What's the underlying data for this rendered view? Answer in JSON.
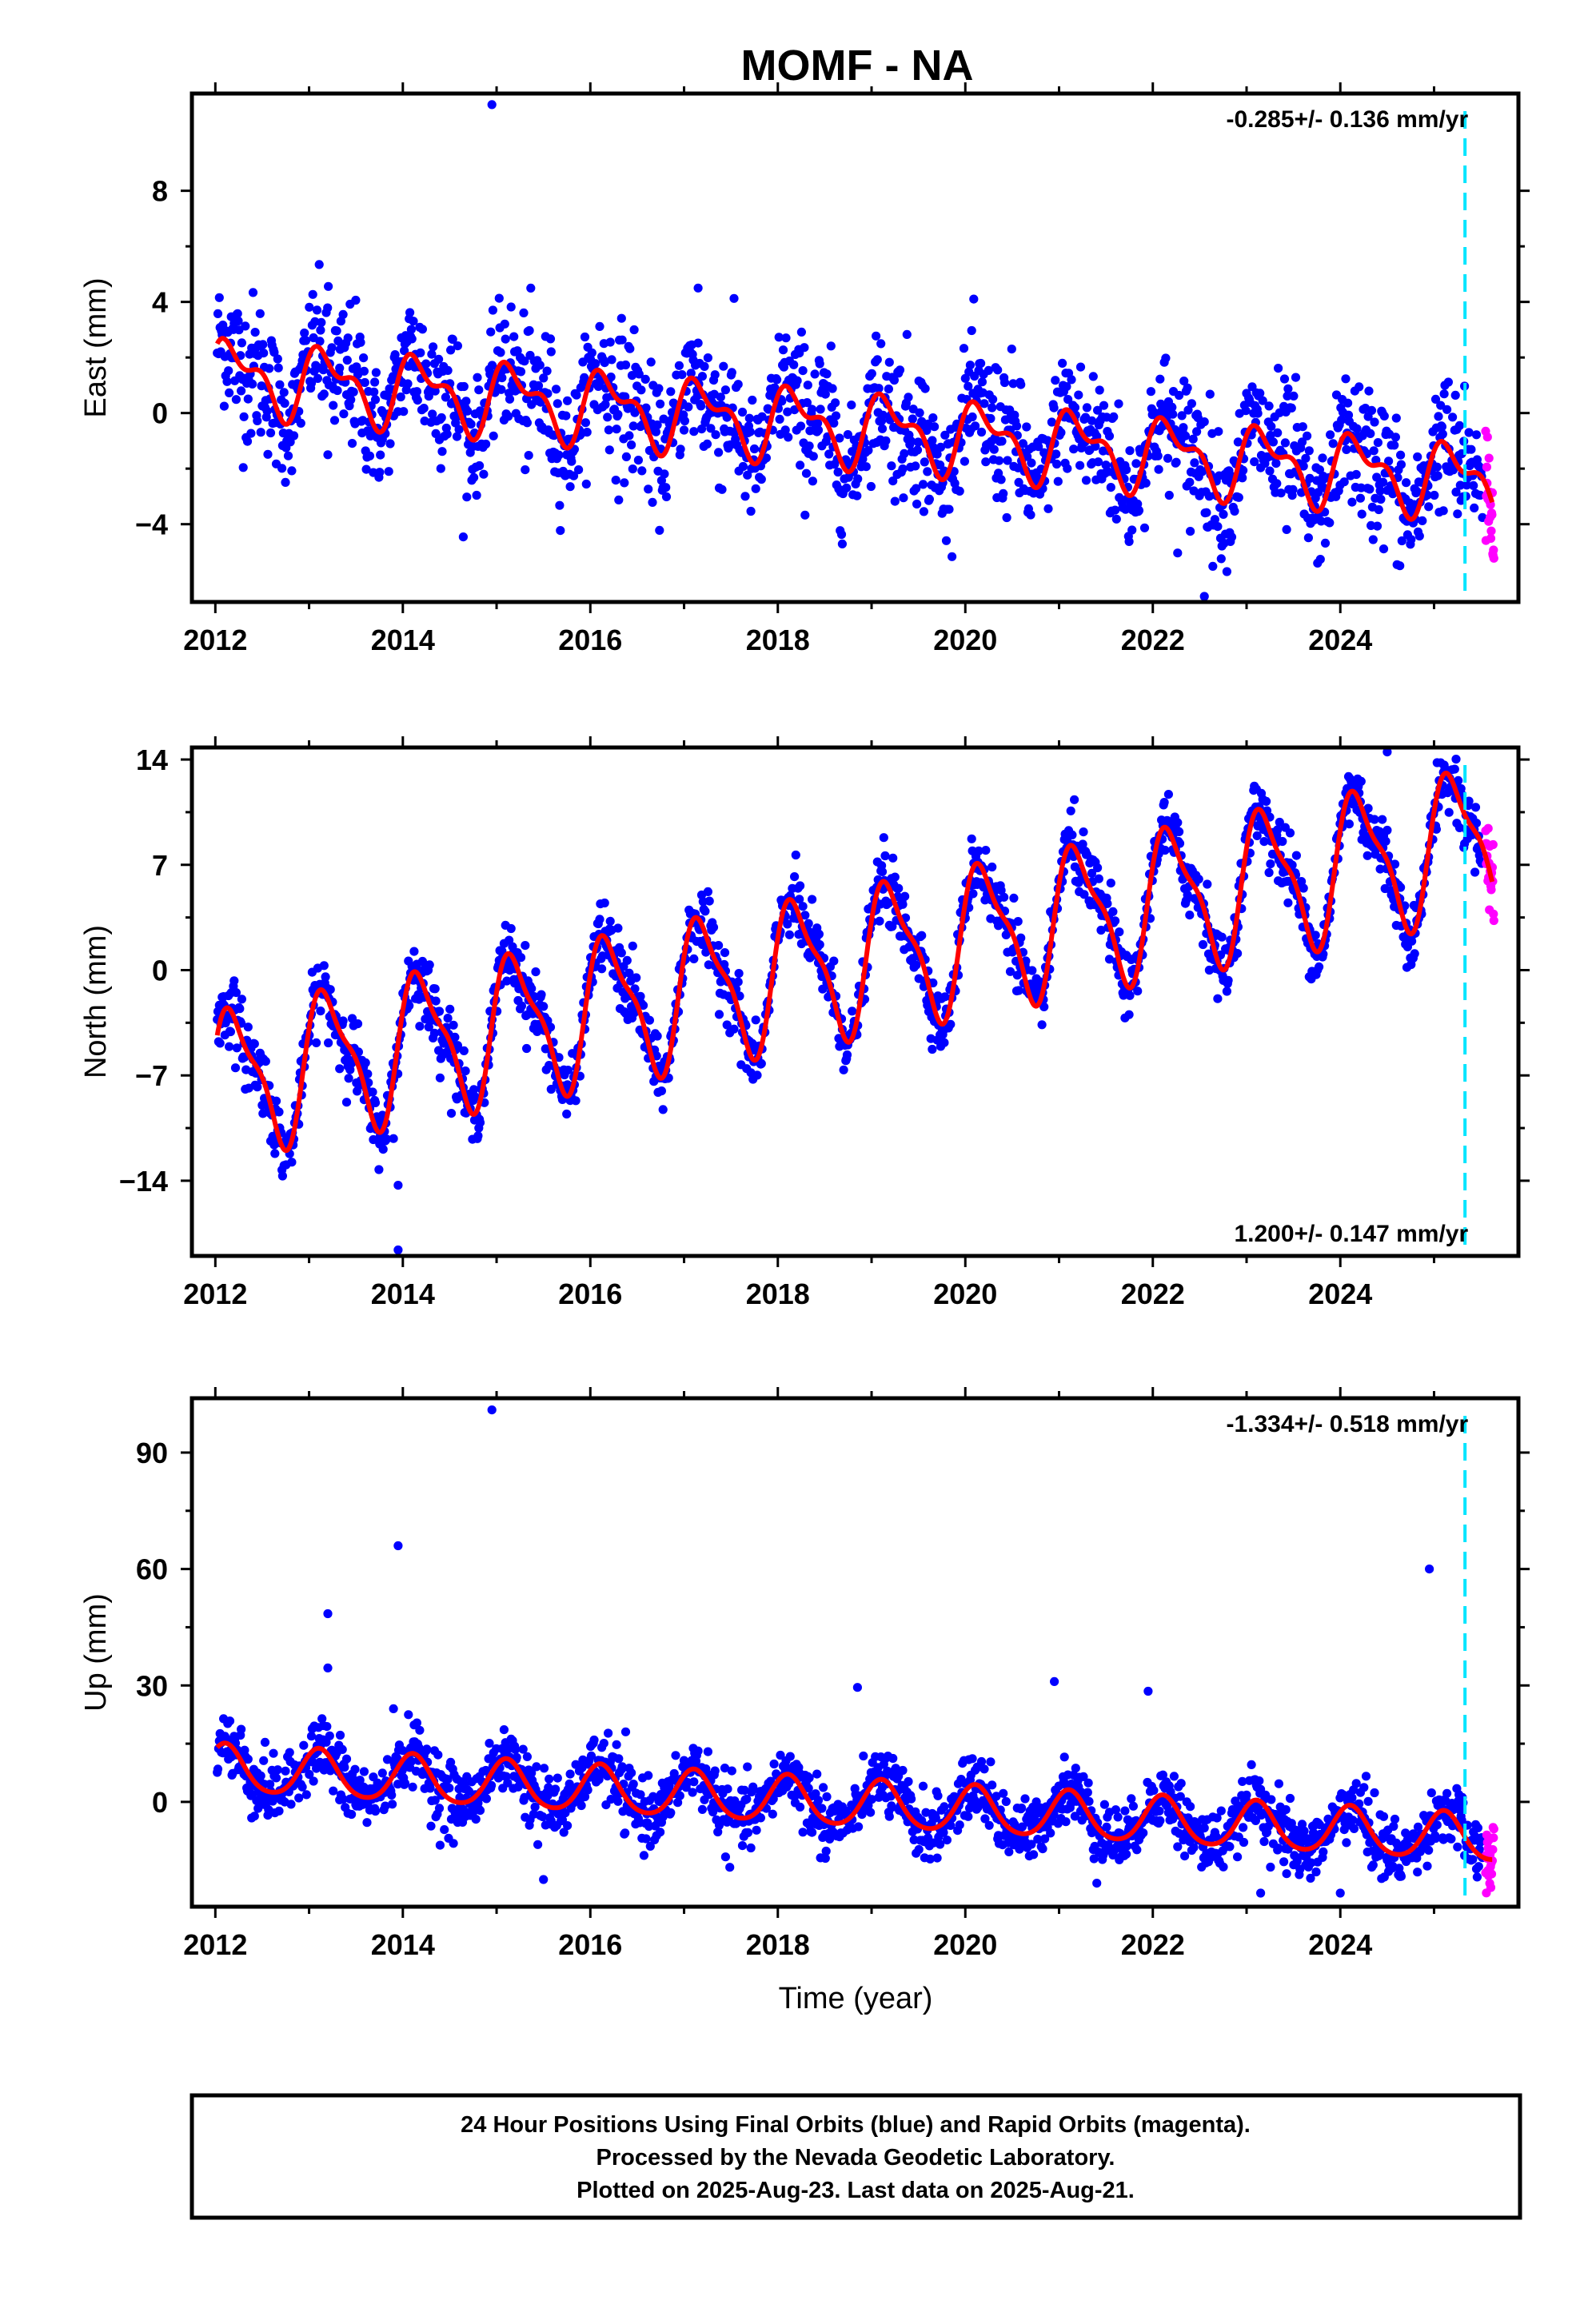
{
  "chart_data": {
    "type": "scatter",
    "title": "MOMF - NA",
    "xlabel": "Time (year)",
    "colors": {
      "final": "#0000ff",
      "rapid": "#ff00ff",
      "model": "#ff0000",
      "break": "#00e5ff"
    },
    "xlim": [
      2011.75,
      2025.9
    ],
    "break_line_x": 2025.33,
    "x_ticks": [
      "2012",
      "2014",
      "2016",
      "2018",
      "2020",
      "2022",
      "2024"
    ],
    "panels": [
      {
        "name": "east",
        "ylabel": "East (mm)",
        "ylim": [
          -6.8,
          11.5
        ],
        "y_ticks": [
          "8",
          "4",
          "0",
          "−4"
        ],
        "y_tick_values": [
          8,
          4,
          0,
          -4
        ],
        "rate_label": "-0.285+/- 0.136 mm/yr",
        "rate_position": "top-right",
        "model": {
          "offset": 1.4,
          "trend": -0.285,
          "annual_amp": 1.1,
          "annual_phase": 0.35,
          "semi_amp": 0.6,
          "semi_phase": 1.2
        },
        "scatter_std": 1.1,
        "outliers": [
          {
            "x": 2014.95,
            "y": 11.1
          },
          {
            "x": 2022.55,
            "y": -6.6
          },
          {
            "x": 2013.2,
            "y": -1.5
          },
          {
            "x": 2017.15,
            "y": 4.5
          }
        ]
      },
      {
        "name": "north",
        "ylabel": "North (mm)",
        "ylim": [
          -19,
          14.8
        ],
        "y_ticks": [
          "14",
          "7",
          "0",
          "−7",
          "−14"
        ],
        "y_tick_values": [
          14,
          7,
          0,
          -7,
          -14
        ],
        "rate_label": "1.200+/- 0.147 mm/yr",
        "rate_position": "bottom-right",
        "model": {
          "offset": -7.5,
          "trend": 1.2,
          "annual_amp": 4.5,
          "annual_phase": 0.3,
          "semi_amp": 1.4,
          "semi_phase": 0.9
        },
        "scatter_std": 1.0,
        "outliers": [
          {
            "x": 2013.95,
            "y": -18.6
          },
          {
            "x": 2013.95,
            "y": -14.3
          },
          {
            "x": 2013.9,
            "y": -11.2
          },
          {
            "x": 2024.5,
            "y": 14.5
          }
        ]
      },
      {
        "name": "up",
        "ylabel": "Up (mm)",
        "ylim": [
          -27,
          104
        ],
        "y_ticks": [
          "90",
          "60",
          "30",
          "0"
        ],
        "y_tick_values": [
          90,
          60,
          30,
          0
        ],
        "rate_label": "-1.334+/- 0.518 mm/yr",
        "rate_position": "top-right",
        "model": {
          "offset": 8.5,
          "trend": -1.334,
          "annual_amp": 6.0,
          "annual_phase": 0.9,
          "semi_amp": 0.8,
          "semi_phase": 0.3
        },
        "scatter_std": 3.8,
        "outliers": [
          {
            "x": 2014.95,
            "y": 101
          },
          {
            "x": 2013.95,
            "y": 66
          },
          {
            "x": 2013.2,
            "y": 48.5
          },
          {
            "x": 2013.2,
            "y": 34.5
          },
          {
            "x": 2024.95,
            "y": 60
          },
          {
            "x": 2020.95,
            "y": 31
          },
          {
            "x": 2021.95,
            "y": 28.5
          },
          {
            "x": 2018.85,
            "y": 29.5
          },
          {
            "x": 2013.9,
            "y": 24
          },
          {
            "x": 2015.5,
            "y": -20
          },
          {
            "x": 2023.15,
            "y": -23.5
          },
          {
            "x": 2024.0,
            "y": -23.5
          }
        ]
      }
    ],
    "footer_lines": [
      "24 Hour Positions Using Final Orbits (blue) and Rapid Orbits (magenta).",
      "Processed by the Nevada Geodetic Laboratory.",
      "Plotted on 2025-Aug-23. Last data on 2025-Aug-21."
    ]
  }
}
